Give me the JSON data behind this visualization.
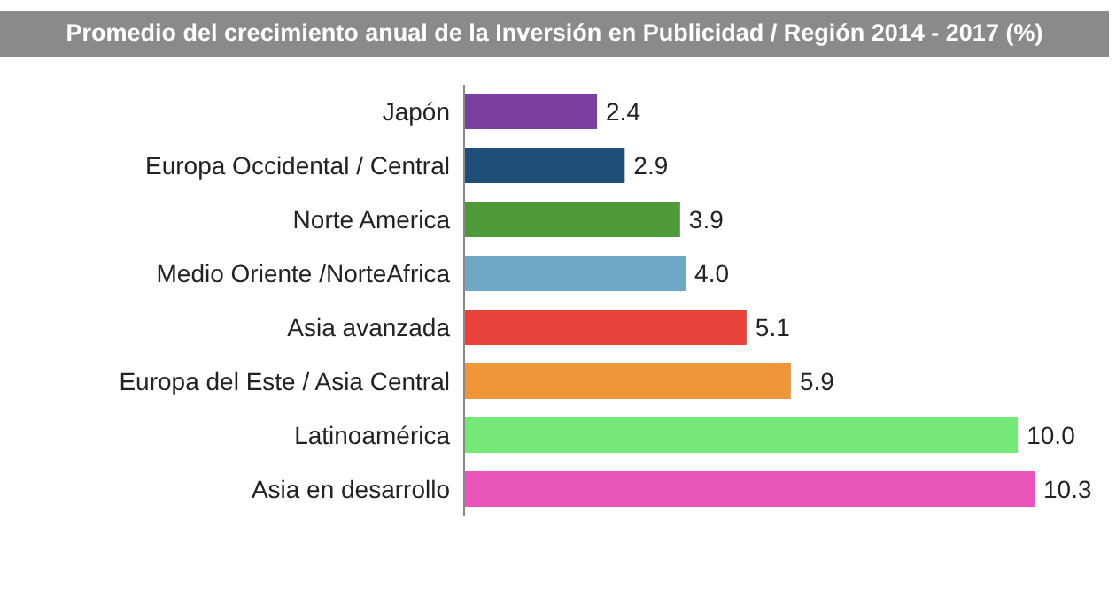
{
  "chart_data": {
    "type": "bar",
    "orientation": "horizontal",
    "title": "Promedio del crecimiento anual de la Inversión en Publicidad / Región 2014 - 2017 (%)",
    "categories": [
      "Japón",
      "Europa Occidental / Central",
      "Norte America",
      "Medio Oriente /NorteAfrica",
      "Asia avanzada",
      "Europa del Este / Asia Central",
      "Latinoamérica",
      "Asia en desarrollo"
    ],
    "values": [
      2.4,
      2.9,
      3.9,
      4.0,
      5.1,
      5.9,
      10.0,
      10.3
    ],
    "colors": [
      "#7b3fa0",
      "#1f4e79",
      "#4e9a3a",
      "#6fa8c4",
      "#e8433a",
      "#f0963a",
      "#76e87a",
      "#e955b8"
    ],
    "value_labels": [
      "2.4",
      "2.9",
      "3.9",
      "4.0",
      "5.1",
      "5.9",
      "10.0",
      "10.3"
    ]
  }
}
